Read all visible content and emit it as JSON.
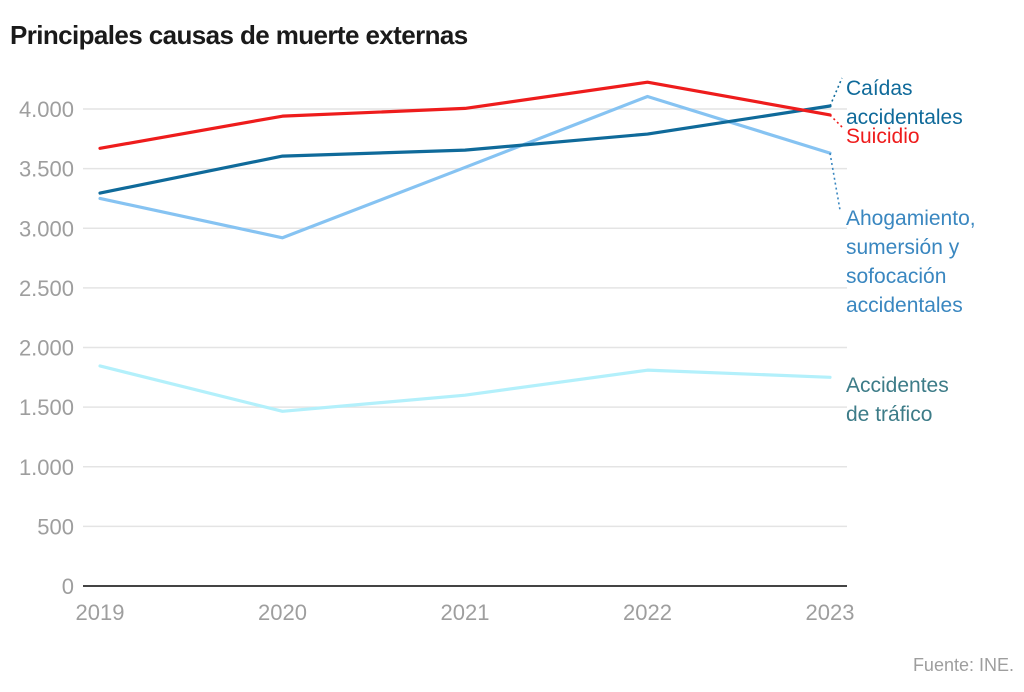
{
  "chart_data": {
    "type": "line",
    "title": "Principales causas de muerte externas",
    "xlabel": "",
    "ylabel": "",
    "x": [
      "2019",
      "2020",
      "2021",
      "2022",
      "2023"
    ],
    "ylim": [
      0,
      4000
    ],
    "yticks": [
      0,
      500,
      1000,
      1500,
      2000,
      2500,
      3000,
      3500,
      4000
    ],
    "ytick_labels": [
      "0",
      "500",
      "1.000",
      "1.500",
      "2.000",
      "2.500",
      "3.000",
      "3.500",
      "4.000"
    ],
    "grid": true,
    "legend": "direct-labels-right",
    "series": [
      {
        "name": "Suicidio",
        "label_lines": [
          "Suicidio"
        ],
        "color": "#ee1c1c",
        "values": [
          3670,
          3940,
          4005,
          4225,
          3950
        ]
      },
      {
        "name": "Caídas accidentales",
        "label_lines": [
          "Caídas",
          "accidentales"
        ],
        "color": "#0f6a9a",
        "values": [
          3295,
          3605,
          3655,
          3790,
          4025
        ]
      },
      {
        "name": "Ahogamiento, sumersión y sofocación accidentales",
        "label_lines": [
          "Ahogamiento,",
          "sumersión y",
          "sofocación",
          "accidentales"
        ],
        "color": "#86c3f2",
        "label_color": "#3a87c0",
        "values": [
          3250,
          2920,
          3510,
          4105,
          3630
        ]
      },
      {
        "name": "Accidentes de tráfico",
        "label_lines": [
          "Accidentes",
          "de tráfico"
        ],
        "color": "#b3f0fb",
        "label_color": "#3d7c88",
        "values": [
          1845,
          1465,
          1600,
          1810,
          1750
        ]
      }
    ],
    "source": "Fuente: INE."
  }
}
